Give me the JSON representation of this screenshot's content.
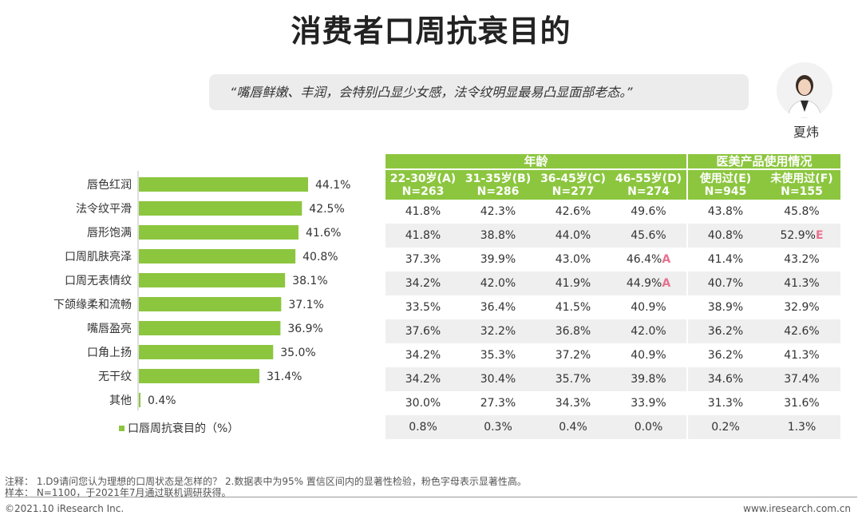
{
  "title": "消费者口周抗衰目的",
  "quote": "“嘴唇鲜嫩、丰润，会特别凸显少女感，法令纹明显最易凸显面部老态。”",
  "expert": {
    "name": "夏炜"
  },
  "colors": {
    "accent": "#8cc63f",
    "significance": "#e8728e"
  },
  "chart_data": {
    "type": "bar",
    "orientation": "horizontal",
    "categories": [
      "唇色红润",
      "法令纹平滑",
      "唇形饱满",
      "口周肌肤亮泽",
      "口周无表情纹",
      "下颌缘柔和流畅",
      "嘴唇盈亮",
      "口角上扬",
      "无干纹",
      "其他"
    ],
    "values": [
      44.1,
      42.5,
      41.6,
      40.8,
      38.1,
      37.1,
      36.9,
      35.0,
      31.4,
      0.4
    ],
    "value_labels": [
      "44.1%",
      "42.5%",
      "41.6%",
      "40.8%",
      "38.1%",
      "37.1%",
      "36.9%",
      "35.0%",
      "31.4%",
      "0.4%"
    ],
    "legend": "口唇周抗衰目的（%）",
    "xlim": [
      0,
      50
    ],
    "color": "#8cc63f"
  },
  "table": {
    "groups": [
      "年龄",
      "医美产品使用情况"
    ],
    "columns": [
      {
        "label": "22-30岁(A)",
        "n": "N=263"
      },
      {
        "label": "31-35岁(B)",
        "n": "N=286"
      },
      {
        "label": "36-45岁(C)",
        "n": "N=277"
      },
      {
        "label": "46-55岁(D)",
        "n": "N=274"
      },
      {
        "label": "使用过(E)",
        "n": "N=945"
      },
      {
        "label": "未使用过(F)",
        "n": "N=155"
      }
    ],
    "rows": [
      [
        {
          "v": "41.8%"
        },
        {
          "v": "42.3%"
        },
        {
          "v": "42.6%"
        },
        {
          "v": "49.6%"
        },
        {
          "v": "43.8%"
        },
        {
          "v": "45.8%"
        }
      ],
      [
        {
          "v": "41.8%"
        },
        {
          "v": "38.8%"
        },
        {
          "v": "44.0%"
        },
        {
          "v": "45.6%"
        },
        {
          "v": "40.8%"
        },
        {
          "v": "52.9%",
          "sig": "E"
        }
      ],
      [
        {
          "v": "37.3%"
        },
        {
          "v": "39.9%"
        },
        {
          "v": "43.0%"
        },
        {
          "v": "46.4%",
          "sig": "A"
        },
        {
          "v": "41.4%"
        },
        {
          "v": "43.2%"
        }
      ],
      [
        {
          "v": "34.2%"
        },
        {
          "v": "42.0%"
        },
        {
          "v": "41.9%"
        },
        {
          "v": "44.9%",
          "sig": "A"
        },
        {
          "v": "40.7%"
        },
        {
          "v": "41.3%"
        }
      ],
      [
        {
          "v": "33.5%"
        },
        {
          "v": "36.4%"
        },
        {
          "v": "41.5%"
        },
        {
          "v": "40.9%"
        },
        {
          "v": "38.9%"
        },
        {
          "v": "32.9%"
        }
      ],
      [
        {
          "v": "37.6%"
        },
        {
          "v": "32.2%"
        },
        {
          "v": "36.8%"
        },
        {
          "v": "42.0%"
        },
        {
          "v": "36.2%"
        },
        {
          "v": "42.6%"
        }
      ],
      [
        {
          "v": "34.2%"
        },
        {
          "v": "35.3%"
        },
        {
          "v": "37.2%"
        },
        {
          "v": "40.9%"
        },
        {
          "v": "36.2%"
        },
        {
          "v": "41.3%"
        }
      ],
      [
        {
          "v": "34.2%"
        },
        {
          "v": "30.4%"
        },
        {
          "v": "35.7%"
        },
        {
          "v": "39.8%"
        },
        {
          "v": "34.6%"
        },
        {
          "v": "37.4%"
        }
      ],
      [
        {
          "v": "30.0%"
        },
        {
          "v": "27.3%"
        },
        {
          "v": "34.3%"
        },
        {
          "v": "33.9%"
        },
        {
          "v": "31.3%"
        },
        {
          "v": "31.6%"
        }
      ],
      [
        {
          "v": "0.8%"
        },
        {
          "v": "0.3%"
        },
        {
          "v": "0.4%"
        },
        {
          "v": "0.0%"
        },
        {
          "v": "0.2%"
        },
        {
          "v": "1.3%"
        }
      ]
    ]
  },
  "notes": {
    "note1": "注释：  1.D9请问您认为理想的口周状态是怎样的？ 2.数据表中为95% 置信区间内的显著性检验，粉色字母表示显著性高。",
    "sample": "样本：  N=1100，于2021年7月通过联机调研获得。"
  },
  "footer": {
    "copyright": "©2021.10 iResearch Inc.",
    "website": "www.iresearch.com.cn"
  }
}
